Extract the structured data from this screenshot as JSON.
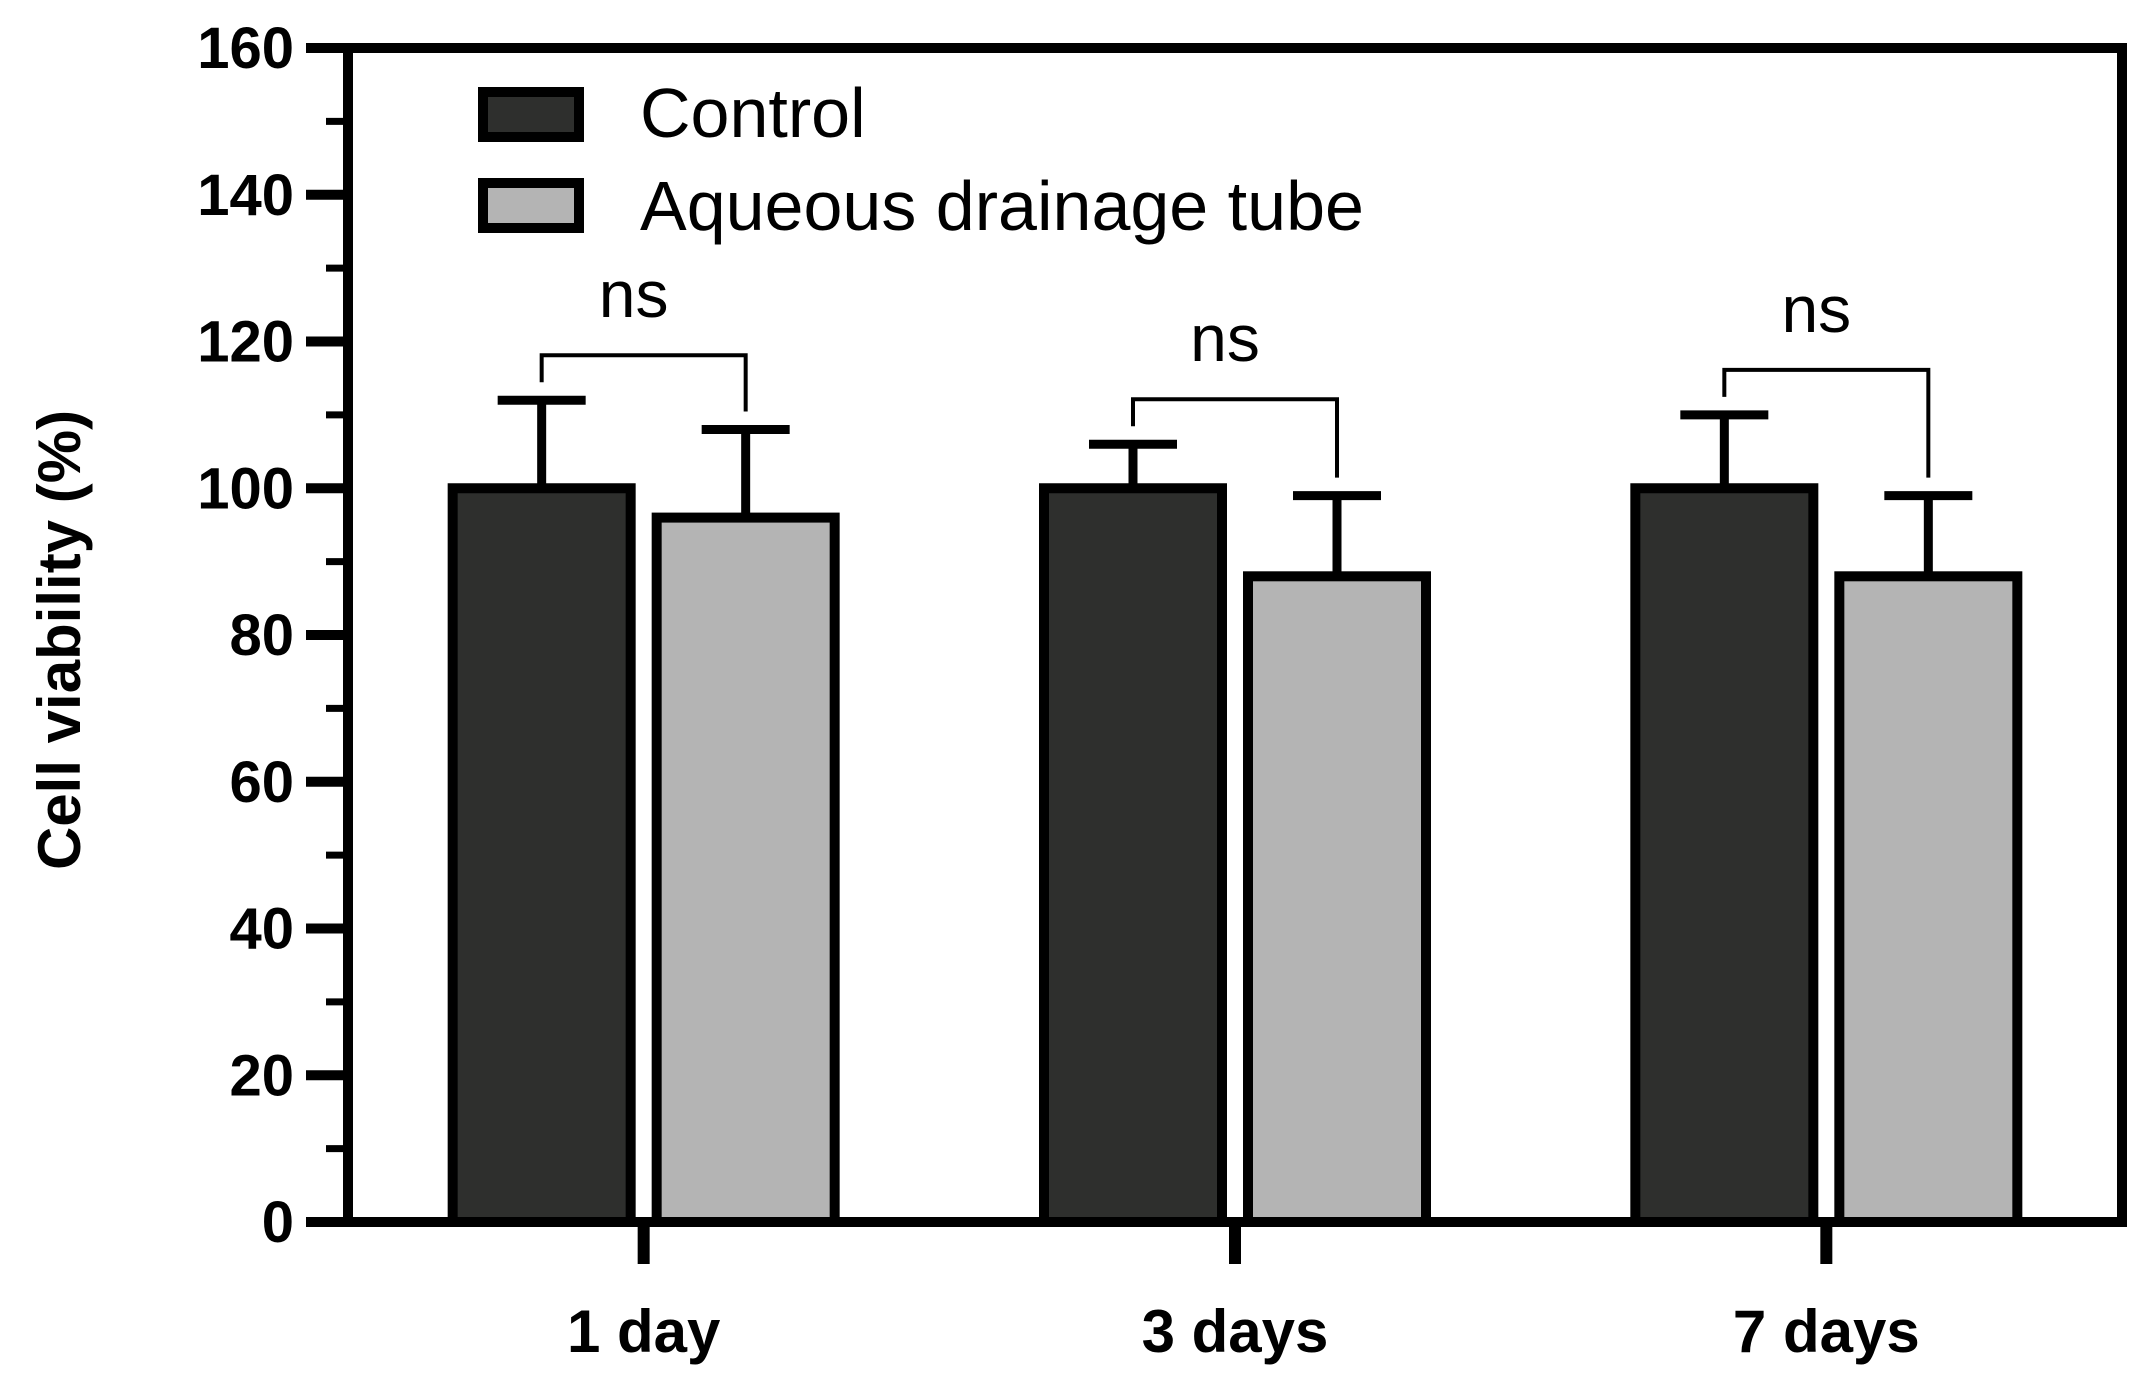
{
  "chart_data": {
    "type": "bar",
    "title": "",
    "xlabel": "",
    "ylabel": "Cell viability (%)",
    "ylim": [
      0,
      160
    ],
    "yticks": [
      0,
      20,
      40,
      60,
      80,
      100,
      120,
      140,
      160
    ],
    "categories": [
      "1 day",
      "3 days",
      "7 days"
    ],
    "series": [
      {
        "name": "Control",
        "color": "#2e2f2d",
        "values": [
          100,
          100,
          100
        ],
        "errors": [
          12,
          6,
          10
        ]
      },
      {
        "name": "Aqueous drainage tube",
        "color": "#b4b4b4",
        "values": [
          96,
          88,
          88
        ],
        "errors": [
          12,
          11,
          11
        ]
      }
    ],
    "significance": [
      {
        "category": "1 day",
        "label": "ns"
      },
      {
        "category": "3 days",
        "label": "ns"
      },
      {
        "category": "7 days",
        "label": "ns"
      }
    ],
    "legend_position": "top-left",
    "grid": false
  }
}
